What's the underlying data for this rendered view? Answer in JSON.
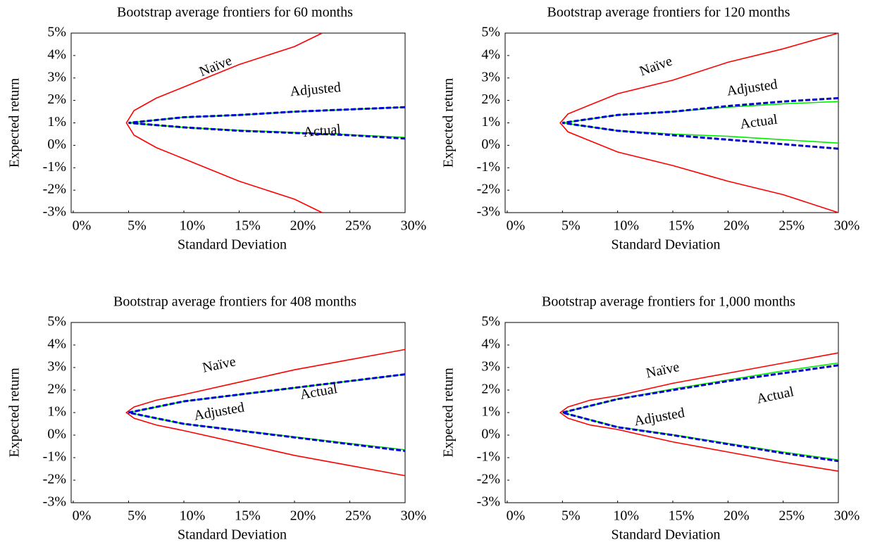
{
  "chart_data": [
    {
      "type": "line",
      "title": "Bootstrap average frontiers for 60 months",
      "xlabel": "Standard Deviation",
      "ylabel": "Expected return",
      "xlim": [
        0,
        30
      ],
      "ylim": [
        -3,
        5
      ],
      "xticks": [
        {
          "value": 0,
          "label": "0%"
        },
        {
          "value": 5,
          "label": "5%"
        },
        {
          "value": 10,
          "label": "10%"
        },
        {
          "value": 15,
          "label": "15%"
        },
        {
          "value": 20,
          "label": "20%"
        },
        {
          "value": 25,
          "label": "25%"
        },
        {
          "value": 30,
          "label": "30%"
        }
      ],
      "yticks": [
        {
          "value": -3,
          "label": "-3%"
        },
        {
          "value": -2,
          "label": "-2%"
        },
        {
          "value": -1,
          "label": "-1%"
        },
        {
          "value": 0,
          "label": "0%"
        },
        {
          "value": 1,
          "label": "1%"
        },
        {
          "value": 2,
          "label": "2%"
        },
        {
          "value": 3,
          "label": "3%"
        },
        {
          "value": 4,
          "label": "4%"
        },
        {
          "value": 5,
          "label": "5%"
        }
      ],
      "series": [
        {
          "name": "Naïve",
          "color": "#ff0000",
          "x": [
            22.5,
            20,
            15,
            10,
            7.5,
            5.5,
            4.8,
            5.5,
            7.5,
            10,
            15,
            20,
            22.5
          ],
          "values": [
            5,
            4.4,
            3.6,
            2.6,
            2.1,
            1.55,
            1,
            0.45,
            -0.1,
            -0.6,
            -1.6,
            -2.4,
            -3
          ]
        },
        {
          "name": "Actual",
          "color": "#00ee00",
          "x": [
            30,
            25,
            20,
            15,
            10,
            5,
            10,
            15,
            20,
            25,
            30
          ],
          "values": [
            1.7,
            1.6,
            1.5,
            1.35,
            1.25,
            1,
            0.8,
            0.67,
            0.57,
            0.47,
            0.35
          ]
        },
        {
          "name": "Adjusted",
          "color": "#0000cc",
          "x": [
            30,
            25,
            20,
            15,
            10,
            5,
            10,
            15,
            20,
            25,
            30
          ],
          "values": [
            1.7,
            1.6,
            1.5,
            1.35,
            1.25,
            1,
            0.8,
            0.65,
            0.55,
            0.45,
            0.3
          ]
        }
      ]
    },
    {
      "type": "line",
      "title": "Bootstrap average frontiers for 120 months",
      "xlabel": "Standard Deviation",
      "ylabel": "Expected return",
      "xlim": [
        0,
        30
      ],
      "ylim": [
        -3,
        5
      ],
      "xticks": [
        {
          "value": 0,
          "label": "0%"
        },
        {
          "value": 5,
          "label": "5%"
        },
        {
          "value": 10,
          "label": "10%"
        },
        {
          "value": 15,
          "label": "15%"
        },
        {
          "value": 20,
          "label": "20%"
        },
        {
          "value": 25,
          "label": "25%"
        },
        {
          "value": 30,
          "label": "30%"
        }
      ],
      "yticks": [
        {
          "value": -3,
          "label": "-3%"
        },
        {
          "value": -2,
          "label": "-2%"
        },
        {
          "value": -1,
          "label": "-1%"
        },
        {
          "value": 0,
          "label": "0%"
        },
        {
          "value": 1,
          "label": "1%"
        },
        {
          "value": 2,
          "label": "2%"
        },
        {
          "value": 3,
          "label": "3%"
        },
        {
          "value": 4,
          "label": "4%"
        },
        {
          "value": 5,
          "label": "5%"
        }
      ],
      "series": [
        {
          "name": "Naïve",
          "color": "#ff0000",
          "x": [
            30,
            25,
            20,
            15,
            10,
            7.5,
            5.5,
            4.8,
            5.5,
            7.5,
            10,
            15,
            20,
            25,
            30
          ],
          "values": [
            5,
            4.3,
            3.7,
            2.9,
            2.3,
            1.8,
            1.4,
            1,
            0.6,
            0.2,
            -0.3,
            -0.9,
            -1.6,
            -2.2,
            -3
          ]
        },
        {
          "name": "Actual",
          "color": "#00ee00",
          "x": [
            30,
            25,
            20,
            15,
            10,
            5,
            10,
            15,
            20,
            25,
            30
          ],
          "values": [
            1.95,
            1.85,
            1.7,
            1.5,
            1.35,
            1,
            0.65,
            0.5,
            0.4,
            0.25,
            0.1
          ]
        },
        {
          "name": "Adjusted",
          "color": "#0000cc",
          "x": [
            30,
            25,
            20,
            15,
            10,
            5,
            10,
            15,
            20,
            25,
            30
          ],
          "values": [
            2.1,
            1.95,
            1.75,
            1.5,
            1.35,
            1,
            0.65,
            0.45,
            0.25,
            0.05,
            -0.15
          ]
        }
      ]
    },
    {
      "type": "line",
      "title": "Bootstrap average frontiers for 408 months",
      "xlabel": "Standard Deviation",
      "ylabel": "Expected return",
      "xlim": [
        0,
        30
      ],
      "ylim": [
        -3,
        5
      ],
      "xticks": [
        {
          "value": 0,
          "label": "0%"
        },
        {
          "value": 5,
          "label": "5%"
        },
        {
          "value": 10,
          "label": "10%"
        },
        {
          "value": 15,
          "label": "15%"
        },
        {
          "value": 20,
          "label": "20%"
        },
        {
          "value": 25,
          "label": "25%"
        },
        {
          "value": 30,
          "label": "30%"
        }
      ],
      "yticks": [
        {
          "value": -3,
          "label": "-3%"
        },
        {
          "value": -2,
          "label": "-2%"
        },
        {
          "value": -1,
          "label": "-1%"
        },
        {
          "value": 0,
          "label": "0%"
        },
        {
          "value": 1,
          "label": "1%"
        },
        {
          "value": 2,
          "label": "2%"
        },
        {
          "value": 3,
          "label": "3%"
        },
        {
          "value": 4,
          "label": "4%"
        },
        {
          "value": 5,
          "label": "5%"
        }
      ],
      "series": [
        {
          "name": "Naïve",
          "color": "#ff0000",
          "x": [
            30,
            25,
            20,
            15,
            10,
            7.5,
            5.5,
            4.8,
            5.5,
            7.5,
            10,
            15,
            20,
            25,
            30
          ],
          "values": [
            3.8,
            3.35,
            2.9,
            2.35,
            1.8,
            1.55,
            1.25,
            1,
            0.75,
            0.45,
            0.2,
            -0.35,
            -0.9,
            -1.35,
            -1.8
          ]
        },
        {
          "name": "Actual",
          "color": "#00ee00",
          "x": [
            30,
            25,
            20,
            15,
            10,
            5,
            10,
            15,
            20,
            25,
            30
          ],
          "values": [
            2.7,
            2.4,
            2.1,
            1.8,
            1.5,
            1,
            0.5,
            0.22,
            -0.08,
            -0.37,
            -0.65
          ]
        },
        {
          "name": "Adjusted",
          "color": "#0000cc",
          "x": [
            30,
            25,
            20,
            15,
            10,
            5,
            10,
            15,
            20,
            25,
            30
          ],
          "values": [
            2.7,
            2.4,
            2.1,
            1.8,
            1.5,
            1,
            0.5,
            0.2,
            -0.1,
            -0.4,
            -0.7
          ]
        }
      ]
    },
    {
      "type": "line",
      "title": "Bootstrap average frontiers for 1,000 months",
      "xlabel": "Standard Deviation",
      "ylabel": "Expected return",
      "xlim": [
        0,
        30
      ],
      "ylim": [
        -3,
        5
      ],
      "xticks": [
        {
          "value": 0,
          "label": "0%"
        },
        {
          "value": 5,
          "label": "5%"
        },
        {
          "value": 10,
          "label": "10%"
        },
        {
          "value": 15,
          "label": "15%"
        },
        {
          "value": 20,
          "label": "20%"
        },
        {
          "value": 25,
          "label": "25%"
        },
        {
          "value": 30,
          "label": "30%"
        }
      ],
      "yticks": [
        {
          "value": -3,
          "label": "-3%"
        },
        {
          "value": -2,
          "label": "-2%"
        },
        {
          "value": -1,
          "label": "-1%"
        },
        {
          "value": 0,
          "label": "0%"
        },
        {
          "value": 1,
          "label": "1%"
        },
        {
          "value": 2,
          "label": "2%"
        },
        {
          "value": 3,
          "label": "3%"
        },
        {
          "value": 4,
          "label": "4%"
        },
        {
          "value": 5,
          "label": "5%"
        }
      ],
      "series": [
        {
          "name": "Naïve",
          "color": "#ff0000",
          "x": [
            30,
            25,
            20,
            15,
            10,
            7.5,
            5.5,
            4.8,
            5.5,
            7.5,
            10,
            15,
            20,
            25,
            30
          ],
          "values": [
            3.65,
            3.2,
            2.75,
            2.3,
            1.75,
            1.55,
            1.25,
            1,
            0.75,
            0.45,
            0.25,
            -0.3,
            -0.75,
            -1.2,
            -1.6
          ]
        },
        {
          "name": "Actual",
          "color": "#00ee00",
          "x": [
            30,
            25,
            20,
            15,
            10,
            5,
            10,
            15,
            20,
            25,
            30
          ],
          "values": [
            3.2,
            2.85,
            2.45,
            2.05,
            1.6,
            1,
            0.37,
            0.02,
            -0.37,
            -0.75,
            -1.1
          ]
        },
        {
          "name": "Adjusted",
          "color": "#0000cc",
          "x": [
            30,
            25,
            20,
            15,
            10,
            5,
            10,
            15,
            20,
            25,
            30
          ],
          "values": [
            3.1,
            2.75,
            2.4,
            2.0,
            1.6,
            1,
            0.35,
            0.0,
            -0.4,
            -0.8,
            -1.15
          ]
        }
      ]
    }
  ]
}
